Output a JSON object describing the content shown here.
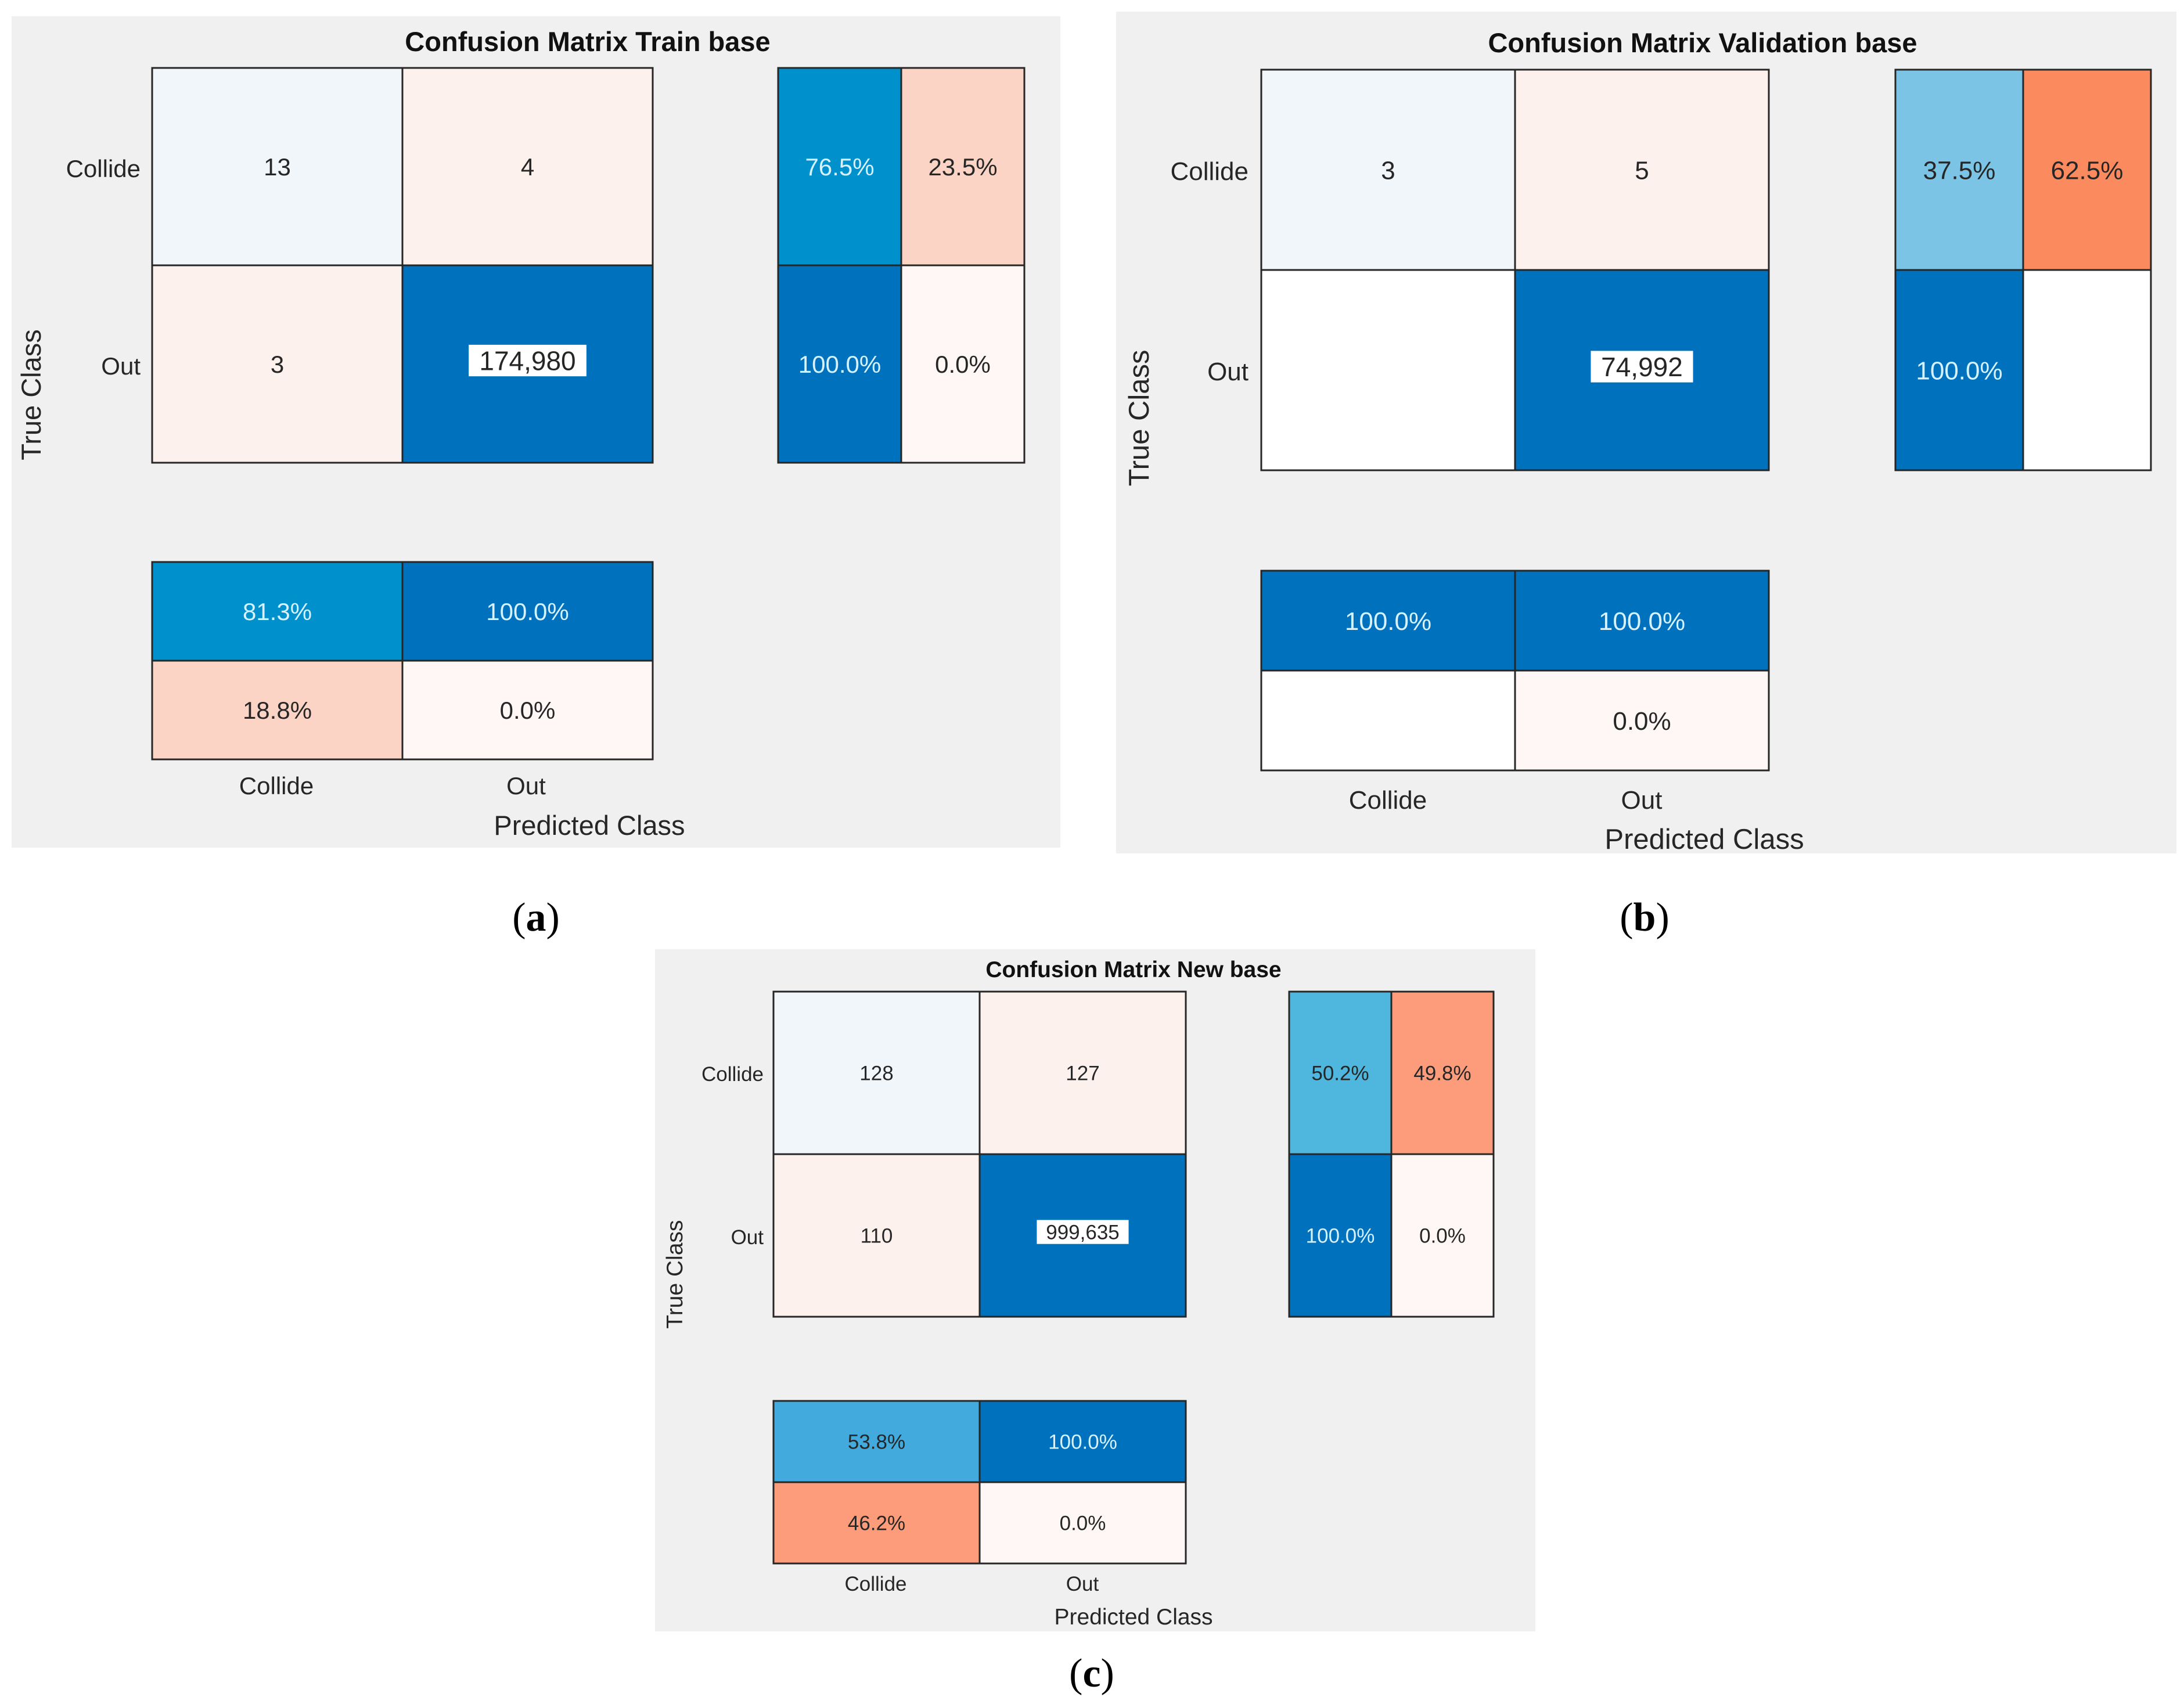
{
  "figure": {
    "captions": [
      {
        "text": "(a)",
        "letter": "a"
      },
      {
        "text": "(b)",
        "letter": "b"
      },
      {
        "text": "(c)",
        "letter": "c"
      }
    ]
  },
  "colors": {
    "panel_bg": "#f0f0f0",
    "deep_blue": "#0072bd",
    "mid_blue": "#0091cd",
    "light_blue_1": "#4fb6de",
    "light_blue_2": "#7cc4e6",
    "light_blue_3": "#42aadc",
    "pale_blue": "#f0f6fa",
    "pale_pink": "#fdf1ee",
    "very_pale_pink": "#fef7f5",
    "salmon_light": "#fcd4c6",
    "salmon": "#fc9c7a",
    "salmon_mid": "#fba98a",
    "orange": "#fc8a5f",
    "white": "#ffffff",
    "cell_text_dark": "#262626",
    "cell_text_light": "#d6f1ff",
    "label_box": "#ffffff"
  },
  "chart_data": [
    {
      "type": "heatmap",
      "title": "Confusion Matrix Train base",
      "xlabel": "Predicted Class",
      "ylabel": "True Class",
      "classes": [
        "Collide",
        "Out"
      ],
      "matrix": [
        [
          13,
          4
        ],
        [
          3,
          174980
        ]
      ],
      "matrix_text": [
        [
          "13",
          "4"
        ],
        [
          "3",
          "174,980"
        ]
      ],
      "row_summary": [
        [
          "76.5%",
          "23.5%"
        ],
        [
          "100.0%",
          "0.0%"
        ]
      ],
      "row_summary_values": [
        [
          76.5,
          23.5
        ],
        [
          100.0,
          0.0
        ]
      ],
      "column_summary": [
        [
          "81.3%",
          "100.0%"
        ],
        [
          "18.8%",
          "0.0%"
        ]
      ],
      "column_summary_values": [
        [
          81.3,
          100.0
        ],
        [
          18.8,
          0.0
        ]
      ]
    },
    {
      "type": "heatmap",
      "title": "Confusion Matrix Validation base",
      "xlabel": "Predicted Class",
      "ylabel": "True Class",
      "classes": [
        "Collide",
        "Out"
      ],
      "matrix": [
        [
          3,
          5
        ],
        [
          0,
          74992
        ]
      ],
      "matrix_text": [
        [
          "3",
          "5"
        ],
        [
          "",
          "74,992"
        ]
      ],
      "row_summary": [
        [
          "37.5%",
          "62.5%"
        ],
        [
          "100.0%",
          ""
        ]
      ],
      "row_summary_values": [
        [
          37.5,
          62.5
        ],
        [
          100.0,
          0.0
        ]
      ],
      "column_summary": [
        [
          "100.0%",
          "100.0%"
        ],
        [
          "",
          "0.0%"
        ]
      ],
      "column_summary_values": [
        [
          100.0,
          100.0
        ],
        [
          0.0,
          0.0
        ]
      ]
    },
    {
      "type": "heatmap",
      "title": "Confusion Matrix New base",
      "xlabel": "Predicted Class",
      "ylabel": "True Class",
      "classes": [
        "Collide",
        "Out"
      ],
      "matrix": [
        [
          128,
          127
        ],
        [
          110,
          999635
        ]
      ],
      "matrix_text": [
        [
          "128",
          "127"
        ],
        [
          "110",
          "999,635"
        ]
      ],
      "row_summary": [
        [
          "50.2%",
          "49.8%"
        ],
        [
          "100.0%",
          "0.0%"
        ]
      ],
      "row_summary_values": [
        [
          50.2,
          49.8
        ],
        [
          100.0,
          0.0
        ]
      ],
      "column_summary": [
        [
          "53.8%",
          "100.0%"
        ],
        [
          "46.2%",
          "0.0%"
        ]
      ],
      "column_summary_values": [
        [
          53.8,
          100.0
        ],
        [
          46.2,
          0.0
        ]
      ]
    }
  ]
}
